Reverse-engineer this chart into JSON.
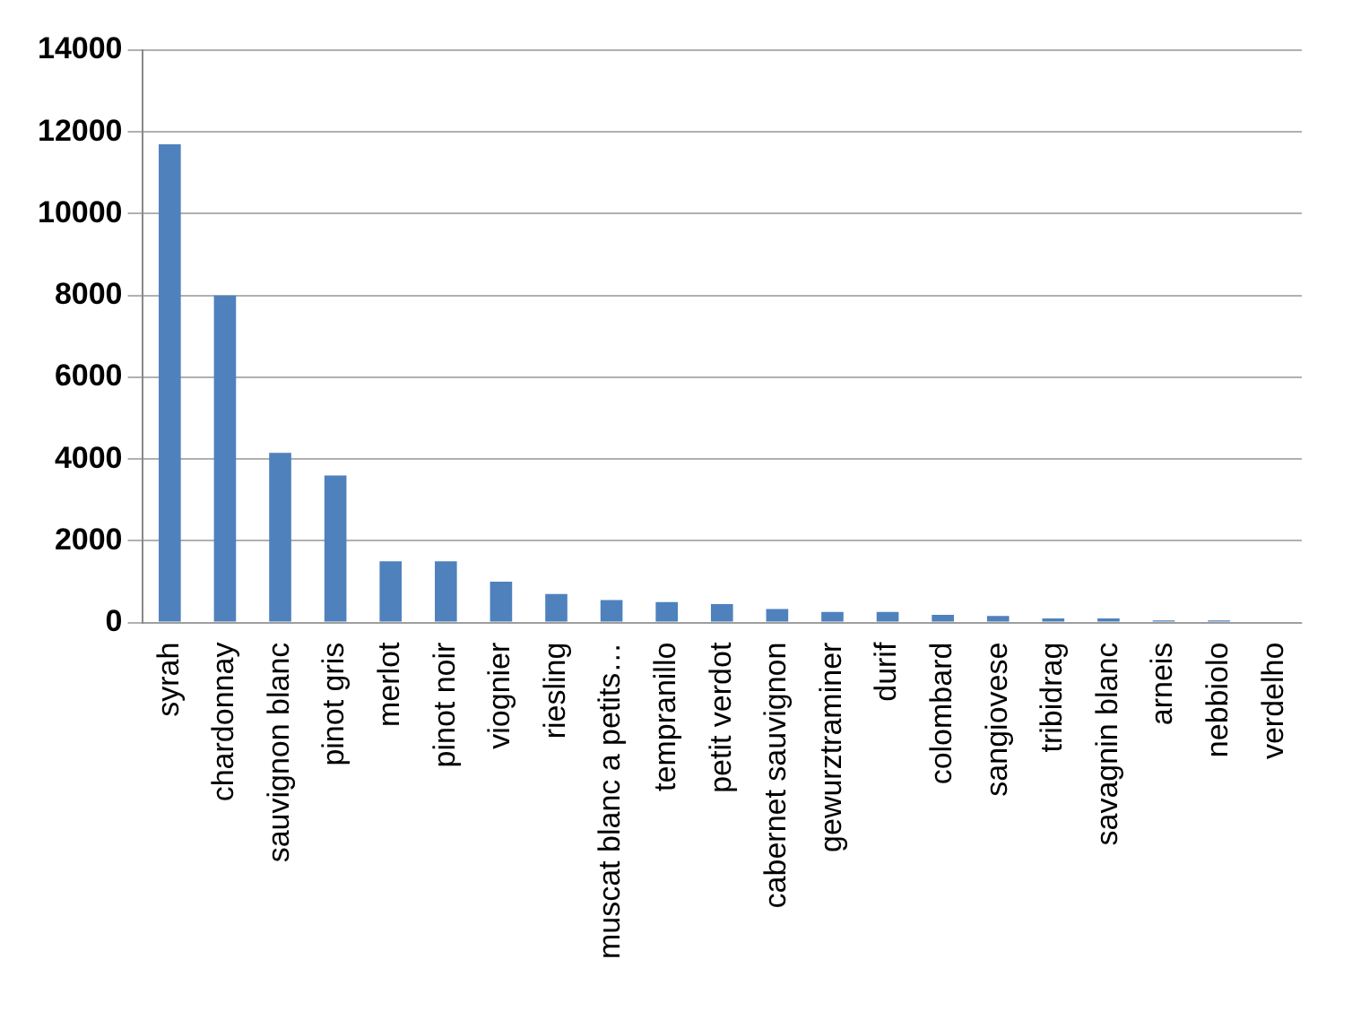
{
  "chart_data": {
    "type": "bar",
    "categories": [
      "syrah",
      "chardonnay",
      "sauvignon blanc",
      "pinot gris",
      "merlot",
      "pinot noir",
      "viognier",
      "riesling",
      "muscat blanc a petits…",
      "tempranillo",
      "petit verdot",
      "cabernet sauvignon",
      "gewurztraminer",
      "durif",
      "colombard",
      "sangiovese",
      "tribidrag",
      "savagnin blanc",
      "arneis",
      "nebbiolo",
      "verdelho"
    ],
    "values": [
      11700,
      8000,
      4150,
      3600,
      1500,
      1500,
      1000,
      700,
      550,
      500,
      450,
      330,
      260,
      260,
      190,
      160,
      100,
      100,
      50,
      50,
      0
    ],
    "color": "#4f81bd",
    "ylim": [
      0,
      14000
    ],
    "yticks": [
      0,
      2000,
      4000,
      6000,
      8000,
      10000,
      12000,
      14000
    ],
    "grid": "y"
  }
}
